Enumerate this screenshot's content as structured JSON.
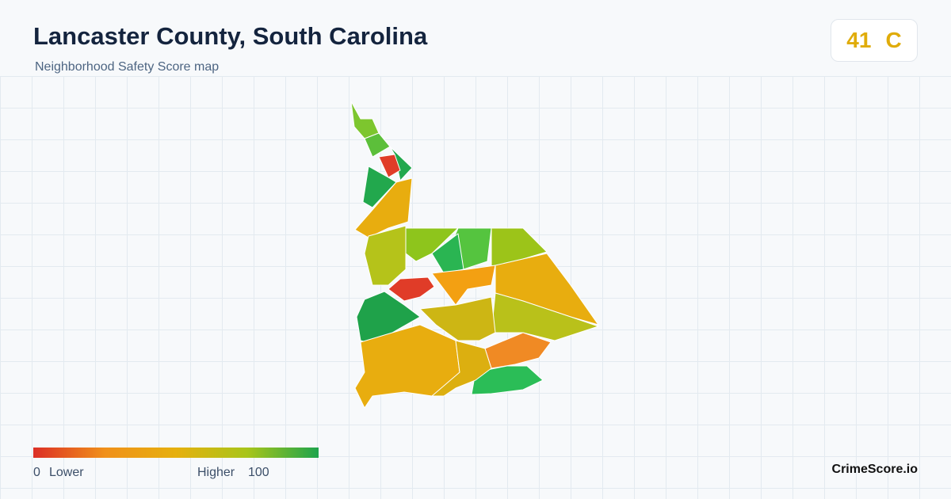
{
  "header": {
    "title": "Lancaster County, South Carolina",
    "subtitle": "Neighborhood Safety Score map"
  },
  "score": {
    "value": 41,
    "grade": "C"
  },
  "legend": {
    "min": 0,
    "min_label": "Lower",
    "max_label": "Higher",
    "max": 100
  },
  "footer": {
    "brand": "CrimeScore.io"
  }
}
